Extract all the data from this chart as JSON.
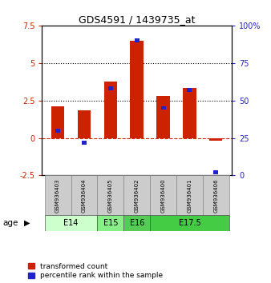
{
  "title": "GDS4591 / 1439735_at",
  "samples": [
    "GSM936403",
    "GSM936404",
    "GSM936405",
    "GSM936402",
    "GSM936400",
    "GSM936401",
    "GSM936406"
  ],
  "red_values": [
    2.1,
    1.85,
    3.75,
    6.5,
    2.8,
    3.35,
    -0.18
  ],
  "blue_pct": [
    30,
    22,
    58,
    90,
    45,
    57,
    2
  ],
  "ylim_left": [
    -2.5,
    7.5
  ],
  "ylim_right": [
    0,
    100
  ],
  "yticks_left": [
    -2.5,
    0,
    2.5,
    5,
    7.5
  ],
  "yticks_right": [
    0,
    25,
    50,
    75,
    100
  ],
  "ytick_labels_left": [
    "-2.5",
    "0",
    "2.5",
    "5",
    "7.5"
  ],
  "ytick_labels_right": [
    "0",
    "25",
    "50",
    "75",
    "100%"
  ],
  "hlines": [
    2.5,
    5.0
  ],
  "age_groups": [
    {
      "label": "E14",
      "start": 0,
      "end": 2,
      "color": "#ccffcc"
    },
    {
      "label": "E15",
      "start": 2,
      "end": 3,
      "color": "#88ee88"
    },
    {
      "label": "E16",
      "start": 3,
      "end": 4,
      "color": "#55cc55"
    },
    {
      "label": "E17.5",
      "start": 4,
      "end": 7,
      "color": "#44cc44"
    }
  ],
  "bar_width": 0.5,
  "red_color": "#cc2200",
  "blue_color": "#2222cc",
  "zero_line_color": "#cc2200",
  "bg_color": "#ffffff",
  "plot_bg": "#ffffff",
  "legend_red": "transformed count",
  "legend_blue": "percentile rank within the sample"
}
